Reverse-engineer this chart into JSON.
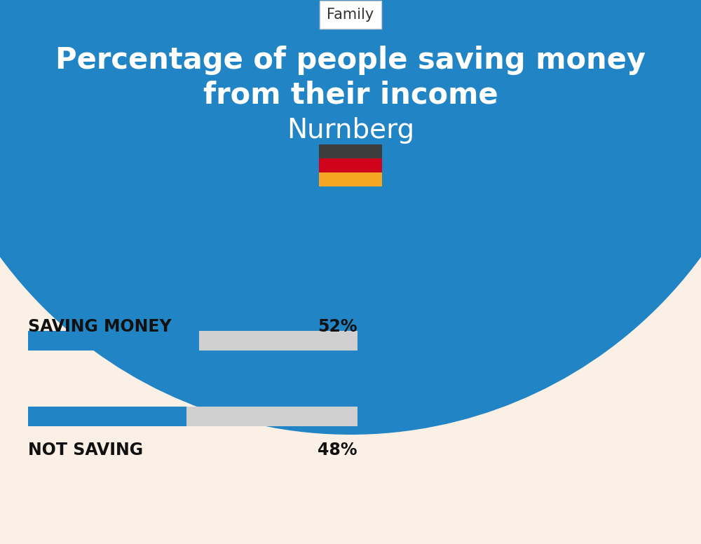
{
  "title_line1": "Percentage of people saving money",
  "title_line2": "from their income",
  "subtitle": "Nurnberg",
  "category_label": "Family",
  "bar1_label": "SAVING MONEY",
  "bar1_value": 52,
  "bar1_pct": "52%",
  "bar2_label": "NOT SAVING",
  "bar2_value": 48,
  "bar2_pct": "48%",
  "blue_bg_color": "#2185C5",
  "bar_blue_color": "#2185C5",
  "bar_gray_color": "#D0D0D0",
  "bg_color": "#FAF0E6",
  "white": "#FFFFFF",
  "black": "#111111",
  "flag_black": "#3D3D3D",
  "flag_red": "#D0021B",
  "flag_yellow": "#F5A623",
  "title_fontsize": 30,
  "subtitle_fontsize": 28,
  "bar_label_fontsize": 17,
  "bar_pct_fontsize": 17,
  "category_fontsize": 15,
  "fig_width": 10.0,
  "fig_height": 7.76
}
